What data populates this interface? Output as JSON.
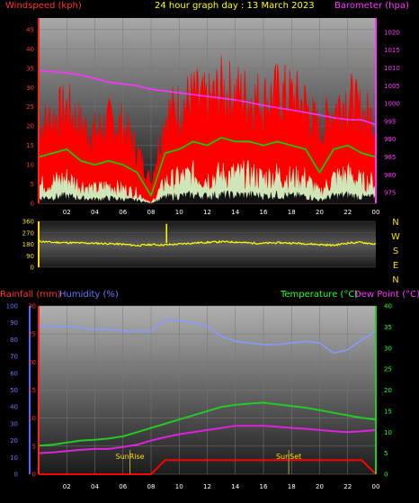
{
  "title": "24 hour graph day : 13 March 2023",
  "x_ticks": [
    "02",
    "04",
    "06",
    "08",
    "10",
    "12",
    "14",
    "16",
    "18",
    "20",
    "22",
    "00"
  ],
  "colors": {
    "wind": "#ff0000",
    "gust_green": "#00dd00",
    "avg_white": "#ccffcc",
    "barometer": "#ff33ff",
    "direction": "#ffff00",
    "humidity": "#8899ff",
    "temperature": "#22cc22",
    "dewpoint": "#dd22dd",
    "rainfall": "#ff0000",
    "tick_red": "#ff3333",
    "tick_green": "#22ff22",
    "tick_yellow": "#ffdd00",
    "tick_blue": "#6677ff"
  },
  "chart_data": [
    {
      "type": "line",
      "title": "24 hour graph day : 13 March 2023",
      "left_axis_label": "Windspeed (kph)",
      "right_axis_label": "Barometer (hpa)",
      "left_ticks": [
        0,
        5,
        10,
        15,
        20,
        25,
        30,
        35,
        40,
        45
      ],
      "right_ticks": [
        975,
        980,
        985,
        990,
        995,
        1000,
        1005,
        1010,
        1015,
        1020
      ],
      "ylim_left": [
        0,
        48
      ],
      "ylim_right": [
        972,
        1024
      ],
      "x": [
        0,
        1,
        2,
        3,
        4,
        5,
        6,
        7,
        8,
        9,
        10,
        11,
        12,
        13,
        14,
        15,
        16,
        17,
        18,
        19,
        20,
        21,
        22,
        23,
        24
      ],
      "series": [
        {
          "key": "gust",
          "values": [
            22,
            24,
            27,
            22,
            20,
            23,
            22,
            15,
            6,
            25,
            27,
            30,
            28,
            32,
            31,
            30,
            29,
            31,
            30,
            28,
            20,
            27,
            30,
            25,
            24
          ]
        },
        {
          "key": "wind",
          "values": [
            12,
            13,
            14,
            11,
            10,
            11,
            10,
            8,
            2,
            13,
            14,
            16,
            15,
            17,
            16,
            16,
            15,
            16,
            15,
            14,
            8,
            14,
            15,
            13,
            12
          ]
        },
        {
          "key": "avg",
          "values": [
            5,
            6,
            7,
            5,
            4,
            5,
            4,
            3,
            0,
            6,
            7,
            8,
            7,
            8,
            8,
            8,
            7,
            8,
            7,
            7,
            3,
            7,
            8,
            6,
            6
          ]
        },
        {
          "key": "barometer",
          "values": [
            1009,
            1009,
            1008.6,
            1008,
            1007,
            1006,
            1005.5,
            1005,
            1004,
            1003.5,
            1003,
            1002.5,
            1002,
            1001.5,
            1001,
            1000.3,
            999.5,
            998.8,
            998.2,
            997.5,
            996.8,
            996,
            995.5,
            995.4,
            994
          ]
        }
      ]
    },
    {
      "type": "line",
      "right_axis_label": "N W S E N",
      "left_ticks": [
        0,
        90,
        180,
        270,
        360
      ],
      "ylim": [
        0,
        360
      ],
      "x": [
        0,
        1,
        2,
        3,
        4,
        5,
        6,
        7,
        8,
        9,
        10,
        11,
        12,
        13,
        14,
        15,
        16,
        17,
        18,
        19,
        20,
        21,
        22,
        23,
        24
      ],
      "series": [
        {
          "key": "direction",
          "values": [
            205,
            195,
            193,
            190,
            188,
            185,
            180,
            170,
            178,
            175,
            182,
            190,
            195,
            200,
            198,
            190,
            188,
            192,
            190,
            185,
            178,
            172,
            190,
            195,
            180
          ]
        }
      ]
    },
    {
      "type": "line",
      "left_axis_label_1": "Rainfall (mm)",
      "left_axis_label_2": "Humidity (%)",
      "right_axis_label_1": "Temperature (°C)",
      "right_axis_label_2": "Dew Point (°C)",
      "humidity_ticks": [
        0,
        10,
        20,
        30,
        40,
        50,
        60,
        70,
        80,
        90,
        100
      ],
      "rain_ticks": [
        0,
        5,
        10,
        15,
        20,
        25,
        30
      ],
      "temp_ticks": [
        0,
        5,
        10,
        15,
        20,
        25,
        30,
        35,
        40
      ],
      "ylim_humidity": [
        0,
        100
      ],
      "ylim_rain": [
        0,
        30
      ],
      "ylim_temp": [
        0,
        40
      ],
      "x": [
        0,
        1,
        2,
        3,
        4,
        5,
        6,
        7,
        8,
        9,
        10,
        11,
        12,
        13,
        14,
        15,
        16,
        17,
        18,
        19,
        20,
        21,
        22,
        23,
        24
      ],
      "series": [
        {
          "key": "humidity",
          "values": [
            88,
            88,
            88,
            87,
            86,
            86,
            85,
            85,
            85,
            92,
            91,
            90,
            88,
            82,
            79,
            78,
            77,
            77,
            78,
            79,
            78,
            72,
            74,
            80,
            85
          ]
        },
        {
          "key": "temperature",
          "values": [
            6.8,
            7,
            7.5,
            8,
            8.2,
            8.5,
            9,
            10,
            11,
            12,
            13,
            14,
            15,
            16,
            16.5,
            16.8,
            17,
            16.6,
            16.2,
            15.8,
            15.2,
            14.6,
            14,
            13.4,
            13
          ]
        },
        {
          "key": "dewpoint",
          "values": [
            5,
            5.2,
            5.5,
            5.8,
            6,
            6,
            6.5,
            7,
            8,
            8.8,
            9.5,
            10,
            10.5,
            11,
            11.5,
            11.5,
            11.5,
            11.3,
            11,
            10.8,
            10.5,
            10.2,
            10,
            10.2,
            10.5
          ]
        },
        {
          "key": "rainfall",
          "values": [
            0,
            0,
            0,
            0,
            0,
            0,
            0,
            0,
            0,
            2.5,
            2.5,
            2.5,
            2.5,
            2.5,
            2.5,
            2.5,
            2.5,
            2.5,
            2.5,
            2.5,
            2.5,
            2.5,
            2.5,
            2.5,
            0
          ]
        }
      ],
      "annotations": [
        {
          "label": "SunRise",
          "x": 6.5
        },
        {
          "label": "SunSet",
          "x": 17.8
        }
      ]
    }
  ]
}
